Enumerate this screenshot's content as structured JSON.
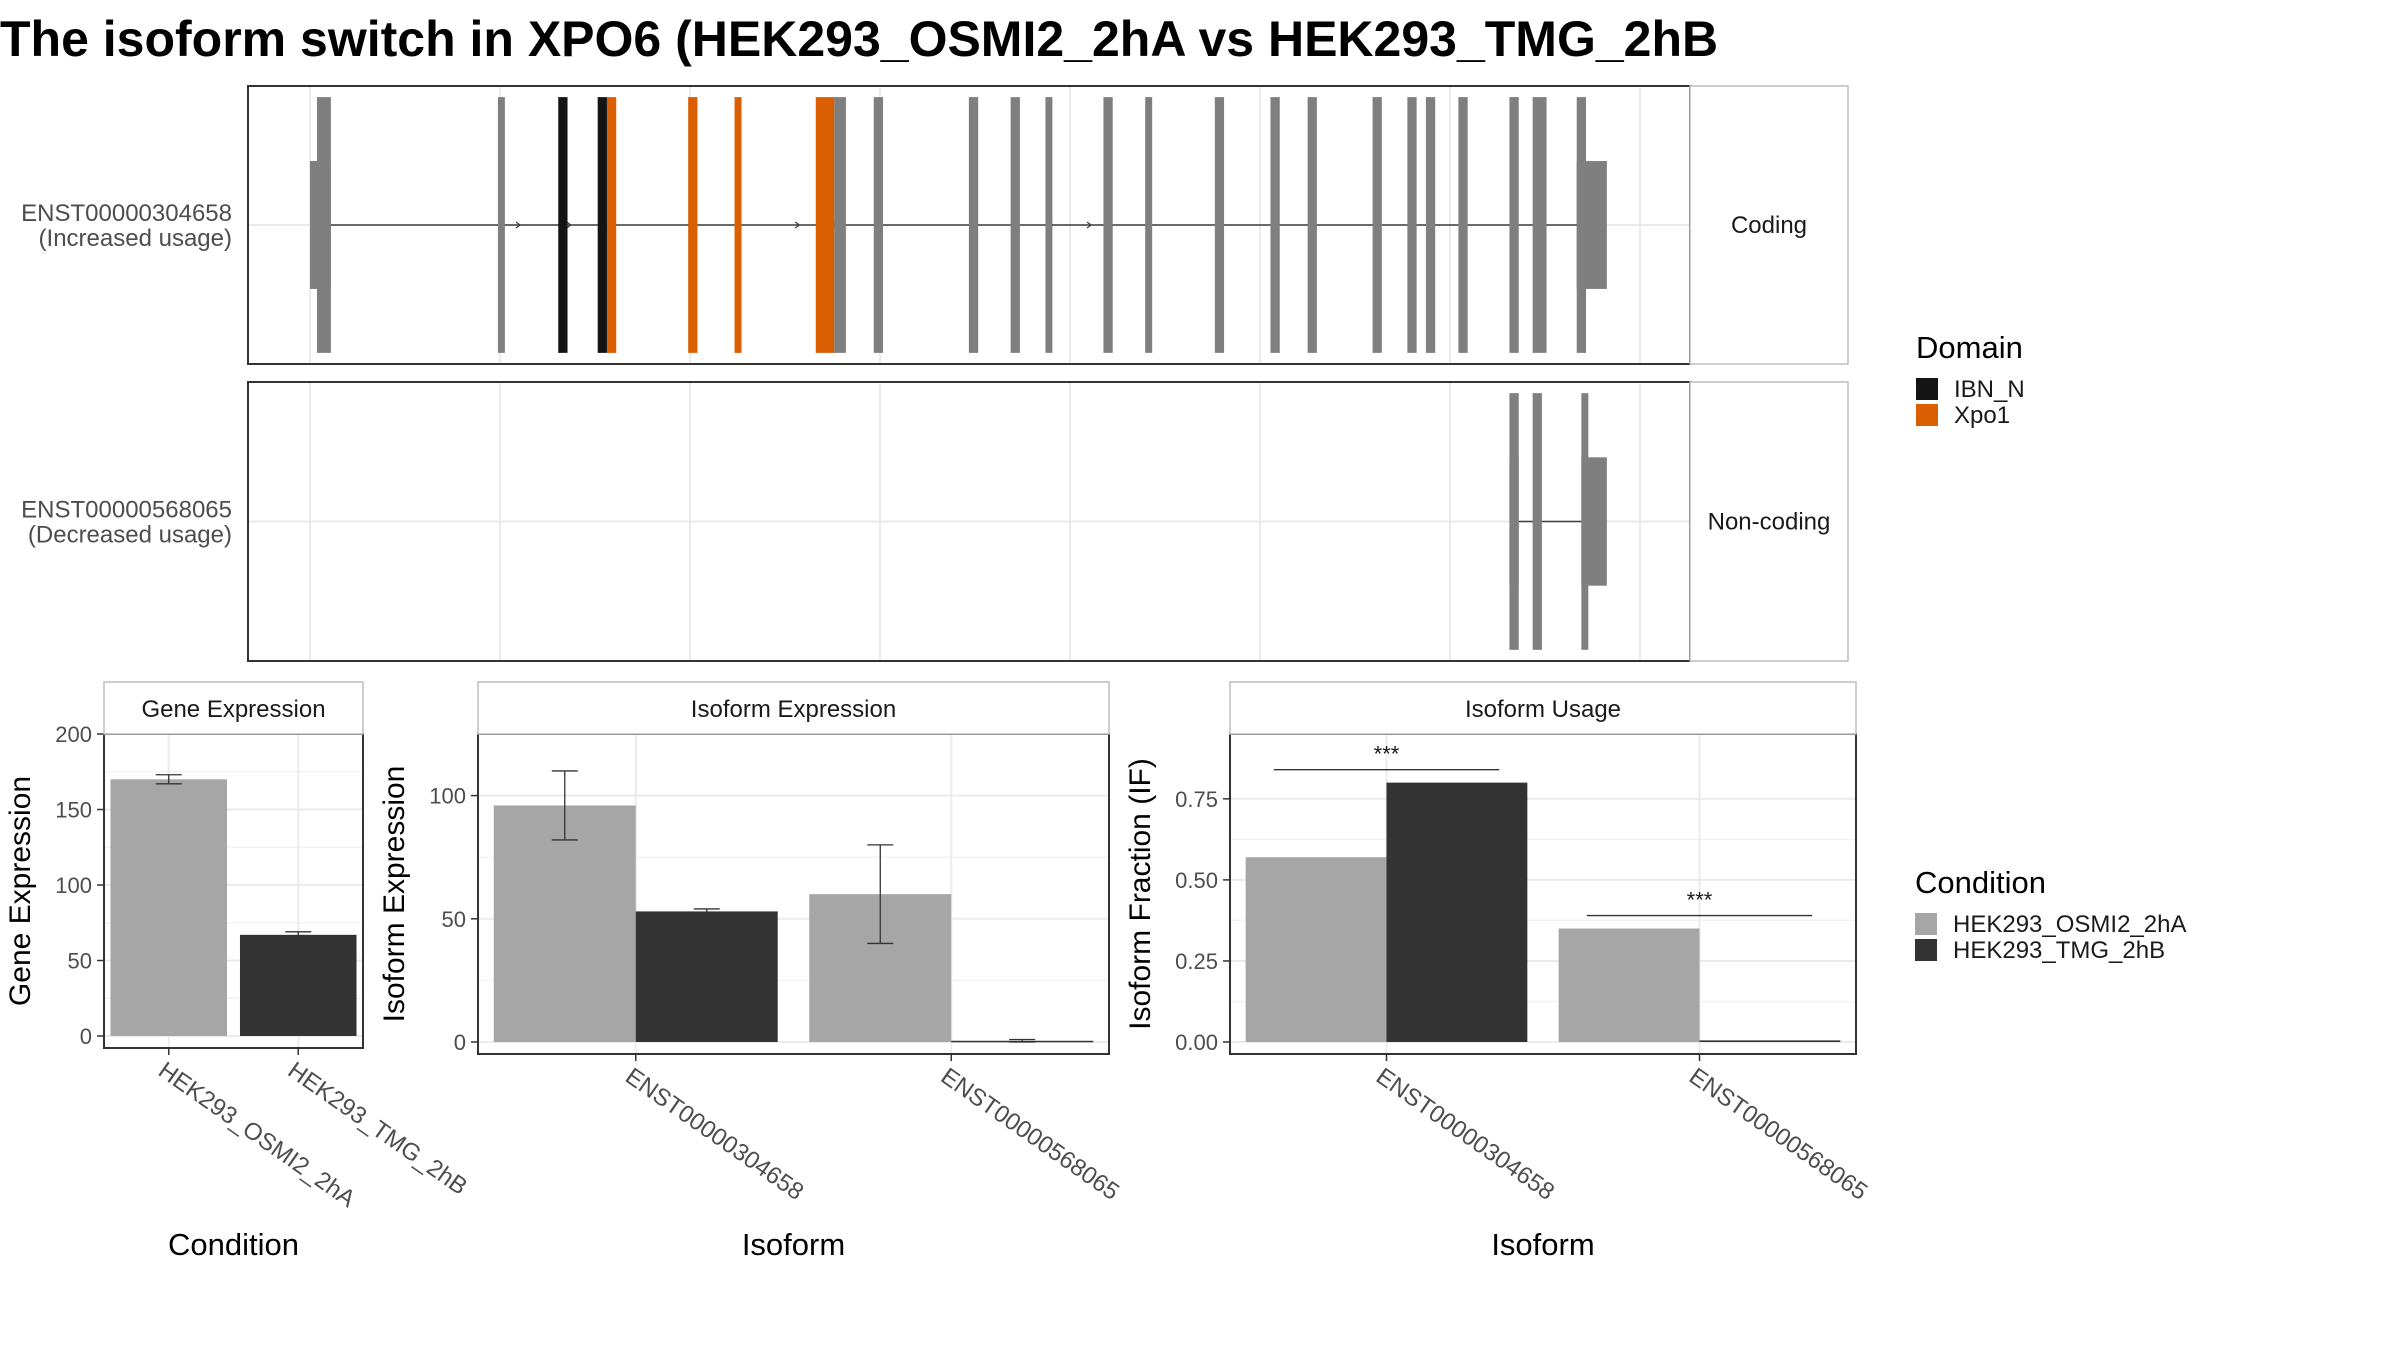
{
  "title": "The isoform switch in XPO6 (HEK293_OSMI2_2hA vs HEK293_TMG_2hB",
  "colors": {
    "exon": "#7f7f7f",
    "intron": "#404040",
    "cond_a": "#a6a6a6",
    "cond_b": "#333333",
    "domain_ibn": "#141414",
    "domain_xpo1": "#d95f02",
    "grid": "#ebebeb",
    "border": "#333333",
    "strip_border": "#bdbdbd"
  },
  "structure": {
    "coding_label": "Coding",
    "noncoding_label": "Non-coding",
    "transcripts": [
      {
        "id": "ENST00000304658",
        "usage": "(Increased usage)",
        "exons": [
          [
            0.3,
            0.9
          ],
          [
            8.1,
            8.4
          ],
          [
            10.7,
            11.1
          ],
          [
            12.4,
            12.8
          ],
          [
            12.8,
            13.2
          ],
          [
            16.3,
            16.7
          ],
          [
            18.3,
            18.6
          ],
          [
            21.8,
            22.6
          ],
          [
            22.6,
            23.1
          ],
          [
            24.3,
            24.7
          ],
          [
            28.4,
            28.8
          ],
          [
            30.2,
            30.6
          ],
          [
            31.7,
            32.0
          ],
          [
            34.2,
            34.6
          ],
          [
            36.0,
            36.3
          ],
          [
            39.0,
            39.4
          ],
          [
            41.4,
            41.8
          ],
          [
            43.0,
            43.4
          ],
          [
            45.8,
            46.2
          ],
          [
            47.3,
            47.7
          ],
          [
            48.1,
            48.5
          ],
          [
            49.5,
            49.9
          ],
          [
            51.7,
            52.1
          ],
          [
            52.7,
            53.3
          ],
          [
            54.6,
            55.0
          ]
        ],
        "utr": [
          [
            0.0,
            0.9
          ],
          [
            54.6,
            55.9
          ]
        ],
        "domains": [
          {
            "name": "IBN_N",
            "exons": [
              10.7,
              12.4
            ]
          },
          {
            "name": "Xpo1",
            "exons": [
              12.8,
              16.3,
              18.3,
              21.8
            ]
          }
        ]
      },
      {
        "id": "ENST00000568065",
        "usage": "(Decreased usage)",
        "exons": [
          [
            51.7,
            52.1
          ],
          [
            52.7,
            53.1
          ],
          [
            54.8,
            55.1
          ]
        ],
        "utr": [
          [
            51.7,
            52.1
          ],
          [
            54.8,
            55.9
          ]
        ],
        "domains": []
      }
    ]
  },
  "legends": {
    "domain": {
      "title": "Domain",
      "items": [
        {
          "label": "IBN_N",
          "color": "#141414"
        },
        {
          "label": "Xpo1",
          "color": "#d95f02"
        }
      ]
    },
    "condition": {
      "title": "Condition",
      "items": [
        {
          "label": "HEK293_OSMI2_2hA",
          "color": "#a6a6a6"
        },
        {
          "label": "HEK293_TMG_2hB",
          "color": "#333333"
        }
      ]
    }
  },
  "chart_data": [
    {
      "type": "bar",
      "title": "Gene Expression",
      "xlabel": "Condition",
      "ylabel": "Gene Expression",
      "ylim": [
        0,
        200
      ],
      "yticks": [
        0,
        50,
        100,
        150,
        200
      ],
      "categories": [
        "HEK293_OSMI2_2hA",
        "HEK293_TMG_2hB"
      ],
      "values": [
        170,
        67
      ],
      "errors": [
        [
          167,
          173
        ],
        [
          65,
          69
        ]
      ]
    },
    {
      "type": "bar",
      "title": "Isoform Expression",
      "xlabel": "Isoform",
      "ylabel": "Isoform Expression",
      "ylim": [
        0,
        125
      ],
      "yticks": [
        0,
        50,
        100
      ],
      "categories": [
        "ENST00000304658",
        "ENST00000568065"
      ],
      "series": [
        {
          "name": "HEK293_OSMI2_2hA",
          "values": [
            96,
            60
          ],
          "errors": [
            [
              82,
              110
            ],
            [
              40,
              80
            ]
          ]
        },
        {
          "name": "HEK293_TMG_2hB",
          "values": [
            53,
            0.5
          ],
          "errors": [
            [
              52,
              54
            ],
            [
              0,
              1
            ]
          ]
        }
      ]
    },
    {
      "type": "bar",
      "title": "Isoform Usage",
      "xlabel": "Isoform",
      "ylabel": "Isoform Fraction (IF)",
      "ylim": [
        0,
        0.95
      ],
      "yticks": [
        0.0,
        0.25,
        0.5,
        0.75
      ],
      "ytick_labels": [
        "0.00",
        "0.25",
        "0.50",
        "0.75"
      ],
      "categories": [
        "ENST00000304658",
        "ENST00000568065"
      ],
      "series": [
        {
          "name": "HEK293_OSMI2_2hA",
          "values": [
            0.57,
            0.35
          ]
        },
        {
          "name": "HEK293_TMG_2hB",
          "values": [
            0.8,
            0.005
          ]
        }
      ],
      "annotations": [
        {
          "category": "ENST00000304658",
          "text": "***",
          "y": 0.84
        },
        {
          "category": "ENST00000568065",
          "text": "***",
          "y": 0.39
        }
      ]
    }
  ]
}
